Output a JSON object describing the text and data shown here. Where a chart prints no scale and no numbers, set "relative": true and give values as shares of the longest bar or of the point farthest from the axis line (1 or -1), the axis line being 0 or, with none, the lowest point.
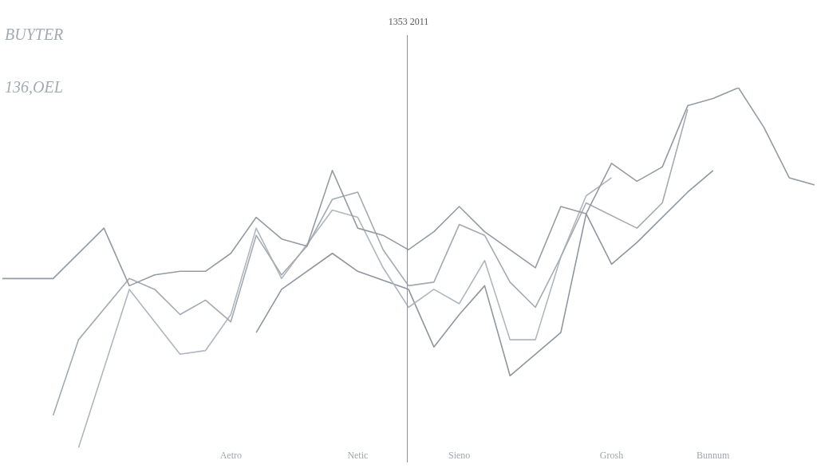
{
  "chart_data": {
    "type": "line",
    "title": "BUYTER",
    "subtitle": "136,OEL",
    "relative": true,
    "categories": [
      null,
      null,
      null,
      null,
      null,
      null,
      null,
      null,
      null,
      "Aetro",
      null,
      null,
      null,
      null,
      "Netic",
      null,
      null,
      null,
      "Sieno",
      null,
      null,
      null,
      null,
      null,
      "Grosh",
      null,
      null,
      null,
      "Bunnum",
      null,
      null,
      null,
      null
    ],
    "tick_labels": "x",
    "marker": "none",
    "line_style": "solid",
    "annotations": [
      "1353 2011"
    ],
    "series": [
      {
        "color": "#959ba3",
        "values": [
          0.47,
          null,
          0.47,
          null,
          0.61,
          0.45,
          0.48,
          0.49,
          0.49,
          0.54,
          0.64,
          0.58,
          0.56,
          0.77,
          0.61,
          0.59,
          0.55,
          0.6,
          0.67,
          0.6,
          null,
          0.5,
          0.67,
          0.65,
          0.79,
          0.74,
          0.78,
          0.95,
          0.97,
          1,
          0.89,
          0.75,
          0.73
        ]
      },
      {
        "color": "#a4aab2",
        "values": [
          null,
          null,
          0.09,
          0.3,
          null,
          0.47,
          0.44,
          0.37,
          0.41,
          0.35,
          0.59,
          0.48,
          0.56,
          0.69,
          0.71,
          0.55,
          0.45,
          0.46,
          0.62,
          0.59,
          0.46,
          0.39,
          0.53,
          0.68,
          null,
          0.61,
          0.68,
          0.94,
          null,
          null,
          null,
          null,
          null
        ]
      },
      {
        "color": "#b0b6be",
        "values": [
          null,
          null,
          null,
          0,
          null,
          0.44,
          null,
          0.26,
          0.27,
          0.37,
          0.61,
          0.47,
          null,
          0.66,
          0.64,
          0.5,
          0.39,
          0.44,
          0.4,
          0.52,
          0.3,
          0.3,
          0.53,
          0.7,
          0.75,
          null,
          null,
          null,
          null,
          null,
          null,
          null,
          null
        ]
      },
      {
        "color": "#8f969e",
        "values": [
          null,
          null,
          null,
          null,
          null,
          null,
          null,
          null,
          null,
          null,
          0.32,
          0.44,
          null,
          0.54,
          0.49,
          null,
          0.44,
          0.28,
          0.37,
          0.45,
          0.2,
          null,
          0.32,
          0.65,
          0.51,
          0.57,
          null,
          0.71,
          0.77,
          null,
          null,
          null,
          null
        ]
      }
    ]
  }
}
